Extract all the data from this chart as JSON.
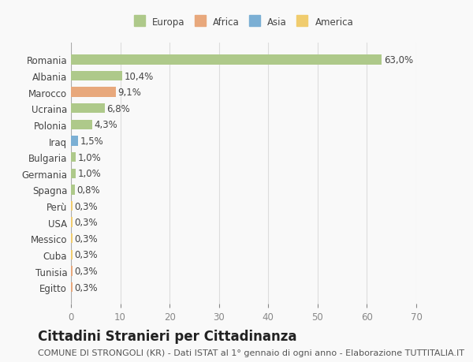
{
  "categories": [
    "Romania",
    "Albania",
    "Marocco",
    "Ucraina",
    "Polonia",
    "Iraq",
    "Bulgaria",
    "Germania",
    "Spagna",
    "Perù",
    "USA",
    "Messico",
    "Cuba",
    "Tunisia",
    "Egitto"
  ],
  "values": [
    63.0,
    10.4,
    9.1,
    6.8,
    4.3,
    1.5,
    1.0,
    1.0,
    0.8,
    0.3,
    0.3,
    0.3,
    0.3,
    0.3,
    0.3
  ],
  "labels": [
    "63,0%",
    "10,4%",
    "9,1%",
    "6,8%",
    "4,3%",
    "1,5%",
    "1,0%",
    "1,0%",
    "0,8%",
    "0,3%",
    "0,3%",
    "0,3%",
    "0,3%",
    "0,3%",
    "0,3%"
  ],
  "colors": [
    "#aec98a",
    "#aec98a",
    "#e8a87c",
    "#aec98a",
    "#aec98a",
    "#7bafd4",
    "#aec98a",
    "#aec98a",
    "#aec98a",
    "#f0cc6e",
    "#f0cc6e",
    "#f0cc6e",
    "#f0cc6e",
    "#e8a87c",
    "#e8a87c"
  ],
  "legend": {
    "Europa": "#aec98a",
    "Africa": "#e8a87c",
    "Asia": "#7bafd4",
    "America": "#f0cc6e"
  },
  "xlim": [
    0,
    70
  ],
  "xticks": [
    0,
    10,
    20,
    30,
    40,
    50,
    60,
    70
  ],
  "title": "Cittadini Stranieri per Cittadinanza",
  "subtitle": "COMUNE DI STRONGOLI (KR) - Dati ISTAT al 1° gennaio di ogni anno - Elaborazione TUTTITALIA.IT",
  "background_color": "#f9f9f9",
  "bar_height": 0.6,
  "grid_color": "#dddddd",
  "label_fontsize": 8.5,
  "tick_fontsize": 8.5,
  "title_fontsize": 12,
  "subtitle_fontsize": 8
}
